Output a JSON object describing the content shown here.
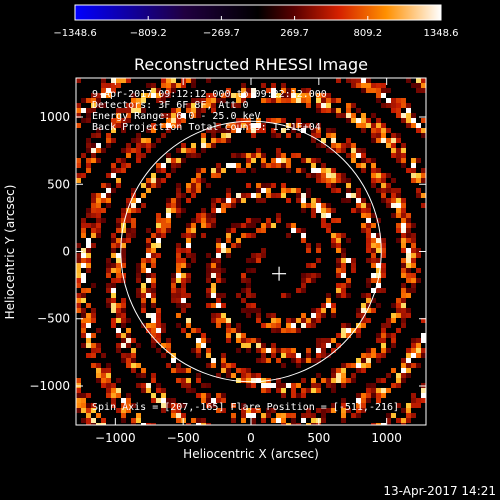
{
  "chart_data": {
    "type": "heatmap",
    "title": "Reconstructed RHESSI Image",
    "xlabel": "Heliocentric X (arcsec)",
    "ylabel": "Heliocentric Y (arcsec)",
    "xlim": [
      -1290,
      1290
    ],
    "ylim": [
      -1290,
      1290
    ],
    "x_ticks": [
      -1000,
      -500,
      0,
      500,
      1000
    ],
    "x_tick_labels": [
      "−1000",
      "−500",
      "0",
      "500",
      "1000"
    ],
    "y_ticks": [
      -1000,
      -500,
      0,
      500,
      1000
    ],
    "y_tick_labels": [
      "−1000",
      "−500",
      "0",
      "500",
      "1000"
    ],
    "colorbar": {
      "range": [
        -1348.6,
        1348.6
      ],
      "tick_labels": [
        "−1348.6",
        "−809.2",
        "−269.7",
        "269.7",
        "809.2",
        "1348.6"
      ]
    },
    "annotations": [
      "9-Apr-2017 09:12:12.000 to 09:22:12.000",
      "Detectors: 3F 6F 8F, Att 0",
      "Energy Range: 6.0 - 25.0 keV",
      "Back Projection   Total counts: 1.11E+04"
    ],
    "footer_note": "Spin Axis = [207,-165]   Flare Position = [-511,-216]",
    "solar_limb_radius": 960,
    "spin_axis": [
      207,
      -165
    ],
    "timestamp": "13-Apr-2017 14:21"
  }
}
